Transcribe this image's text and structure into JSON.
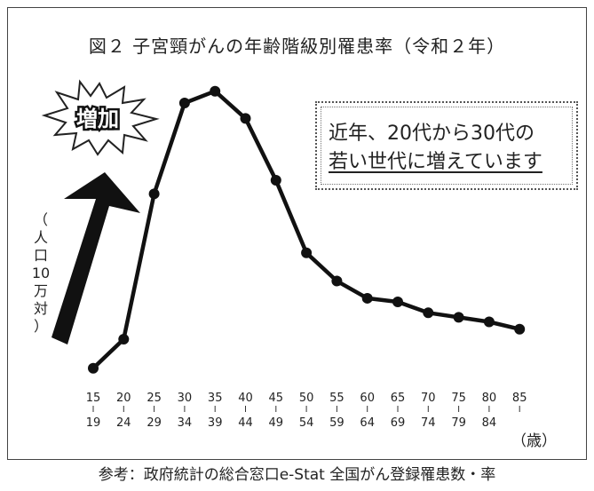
{
  "title": "図２ 子宮頸がんの年齢階級別罹患率（令和２年）",
  "source": "参考：政府統計の総合窓口e-Stat 全国がん登録罹患数・率",
  "badge": "増加",
  "note": {
    "line1": "近年、20代から30代の",
    "line2": "若い世代に増えています"
  },
  "ylabel_chars": [
    "（",
    "人",
    "口",
    "10",
    "万",
    "対",
    "）"
  ],
  "unit_label": "（歳）",
  "chart_data": {
    "type": "line",
    "title": "図２ 子宮頸がんの年齢階級別罹患率（令和２年）",
    "ylabel": "（人口10万対）",
    "xlabel": "（歳）",
    "categories": [
      "15-19",
      "20-24",
      "25-29",
      "30-34",
      "35-39",
      "40-44",
      "45-49",
      "50-54",
      "55-59",
      "60-64",
      "65-69",
      "70-74",
      "75-79",
      "80-84",
      "85-"
    ],
    "x_top": [
      "15",
      "20",
      "25",
      "30",
      "35",
      "40",
      "45",
      "50",
      "55",
      "60",
      "65",
      "70",
      "75",
      "80",
      "85"
    ],
    "x_bottom": [
      "19",
      "24",
      "29",
      "34",
      "39",
      "44",
      "49",
      "54",
      "59",
      "64",
      "69",
      "74",
      "79",
      "84",
      ""
    ],
    "values": [
      1.3,
      4.5,
      20.5,
      30.5,
      31.8,
      28.8,
      22.0,
      14.0,
      10.9,
      9.0,
      8.6,
      7.4,
      6.9,
      6.4,
      5.6
    ],
    "ylim": [
      0,
      35
    ],
    "grid": false,
    "line_color": "#111111"
  }
}
